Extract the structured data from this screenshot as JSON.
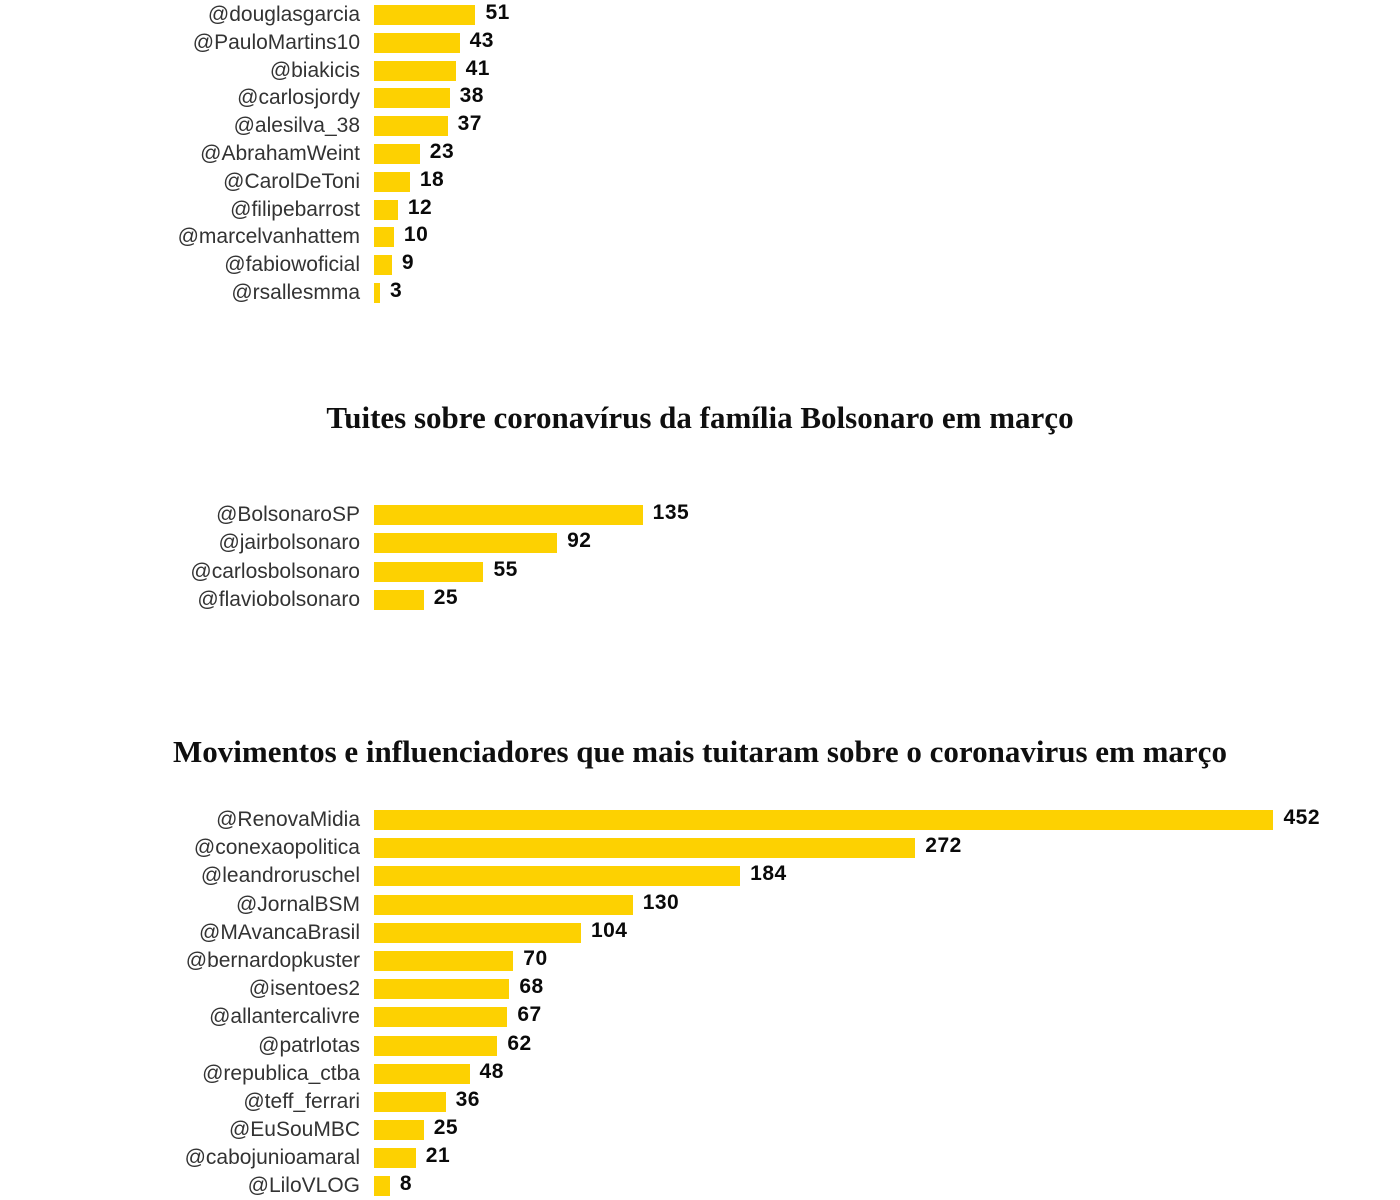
{
  "theme": {
    "background": "#ffffff",
    "bar_color": "#fdd101",
    "label_color": "#333333",
    "value_color": "#0a0a0a",
    "title_color": "#0f0f0f"
  },
  "chart_data": [
    {
      "type": "bar",
      "orientation": "horizontal",
      "title": "",
      "legend": false,
      "grid": false,
      "value_labels_shown": true,
      "categories": [
        "@douglasgarcia",
        "@PauloMartins10",
        "@biakicis",
        "@carlosjordy",
        "@alesilva_38",
        "@AbrahamWeint",
        "@CarolDeToni",
        "@filipebarrost",
        "@marcelvanhattem",
        "@fabiowoficial",
        "@rsallesmma"
      ],
      "values": [
        51,
        43,
        41,
        38,
        37,
        23,
        18,
        12,
        10,
        9,
        3
      ]
    },
    {
      "type": "bar",
      "orientation": "horizontal",
      "title": "Tuites sobre coronavírus da família Bolsonaro em março",
      "legend": false,
      "grid": false,
      "value_labels_shown": true,
      "categories": [
        "@BolsonaroSP",
        "@jairbolsonaro",
        "@carlosbolsonaro",
        "@flaviobolsonaro"
      ],
      "values": [
        135,
        92,
        55,
        25
      ]
    },
    {
      "type": "bar",
      "orientation": "horizontal",
      "title": "Movimentos e influenciadores que mais tuitaram sobre o coronavirus em março",
      "legend": false,
      "grid": false,
      "value_labels_shown": true,
      "categories": [
        "@RenovaMidia",
        "@conexaopolitica",
        "@leandroruschel",
        "@JornalBSM",
        "@MAvancaBrasil",
        "@bernardopkuster",
        "@isentoes2",
        "@allantercalivre",
        "@patrlotas",
        "@republica_ctba",
        "@teff_ferrari",
        "@EuSouMBC",
        "@cabojunioamaral",
        "@LiloVLOG"
      ],
      "values": [
        452,
        272,
        184,
        130,
        104,
        70,
        68,
        67,
        62,
        48,
        36,
        25,
        21,
        8
      ]
    }
  ]
}
